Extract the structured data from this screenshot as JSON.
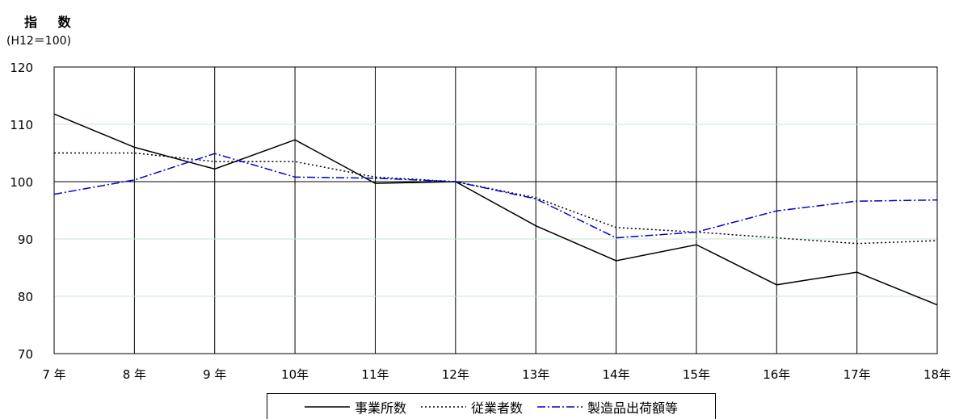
{
  "chart_data": {
    "type": "line",
    "ylabel": "指 数",
    "ylabel_sub": "(H12＝100)",
    "categories": [
      "7 年",
      "8 年",
      "9 年",
      "10年",
      "11年",
      "12年",
      "13年",
      "14年",
      "15年",
      "16年",
      "17年",
      "18年"
    ],
    "ylim": [
      70,
      120
    ],
    "yticks": [
      70,
      80,
      90,
      100,
      110,
      120
    ],
    "grid": "vertical lines and horizontal gridlines",
    "legend_position": "bottom",
    "series": [
      {
        "name": "事業所数",
        "style": "solid",
        "color": "#000000",
        "values": [
          111.8,
          106.0,
          102.2,
          107.3,
          99.7,
          100.0,
          92.3,
          86.2,
          89.0,
          82.0,
          84.2,
          78.5
        ]
      },
      {
        "name": "従業者数",
        "style": "dotted",
        "color": "#000000",
        "values": [
          105.0,
          105.0,
          103.5,
          103.5,
          100.8,
          100.0,
          97.2,
          92.0,
          91.2,
          90.2,
          89.2,
          89.7
        ]
      },
      {
        "name": "製造品出荷額等",
        "style": "dash-dot",
        "color": "#0000cc",
        "values": [
          97.8,
          100.3,
          104.9,
          100.8,
          100.6,
          100.0,
          97.0,
          90.2,
          91.2,
          94.9,
          96.6,
          96.8
        ]
      }
    ]
  }
}
